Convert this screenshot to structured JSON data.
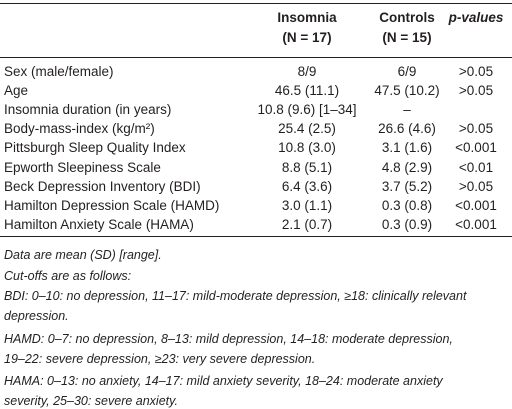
{
  "table": {
    "header": [
      {
        "lines": []
      },
      {
        "lines": [
          "Insomnia",
          "(N = 17)"
        ]
      },
      {
        "lines": [
          "Controls",
          "(N = 15)"
        ]
      },
      {
        "lines": [
          "p-values"
        ]
      }
    ],
    "rows": [
      [
        "Sex (male/female)",
        "8/9",
        "6/9",
        ">0.05"
      ],
      [
        "Age",
        "46.5 (11.1)",
        "47.5 (10.2)",
        ">0.05"
      ],
      [
        "Insomnia duration (in years)",
        "10.8 (9.6) [1–34]",
        "–",
        ""
      ],
      [
        "Body-mass-index (kg/m²)",
        "25.4 (2.5)",
        "26.6 (4.6)",
        ">0.05"
      ],
      [
        "Pittsburgh Sleep Quality Index",
        "10.8 (3.0)",
        "3.1 (1.6)",
        "<0.001"
      ],
      [
        "Epworth Sleepiness Scale",
        "8.8 (5.1)",
        "4.8 (2.9)",
        "<0.01"
      ],
      [
        "Beck Depression Inventory (BDI)",
        "6.4 (3.6)",
        "3.7 (5.2)",
        ">0.05"
      ],
      [
        "Hamilton Depression Scale (HAMD)",
        "3.0 (1.1)",
        "0.3 (0.8)",
        "<0.001"
      ],
      [
        "Hamilton Anxiety Scale (HAMA)",
        "2.1 (0.7)",
        "0.3 (0.9)",
        "<0.001"
      ]
    ]
  },
  "notes": [
    [
      "Data are mean (SD) [range]."
    ],
    [
      "Cut-offs are as follows:"
    ],
    [
      "BDI: 0–10: no depression, 11–17: mild-moderate depression, ≥18: clinically relevant",
      "depression."
    ],
    [
      "HAMD: 0–7: no depression, 8–13: mild depression, 14–18: moderate depression,",
      "19–22: severe depression, ≥23: very severe depression."
    ],
    [
      "HAMA: 0–13: no anxiety, 14–17: mild anxiety severity, 18–24: moderate anxiety",
      "severity, 25–30: severe anxiety."
    ]
  ]
}
